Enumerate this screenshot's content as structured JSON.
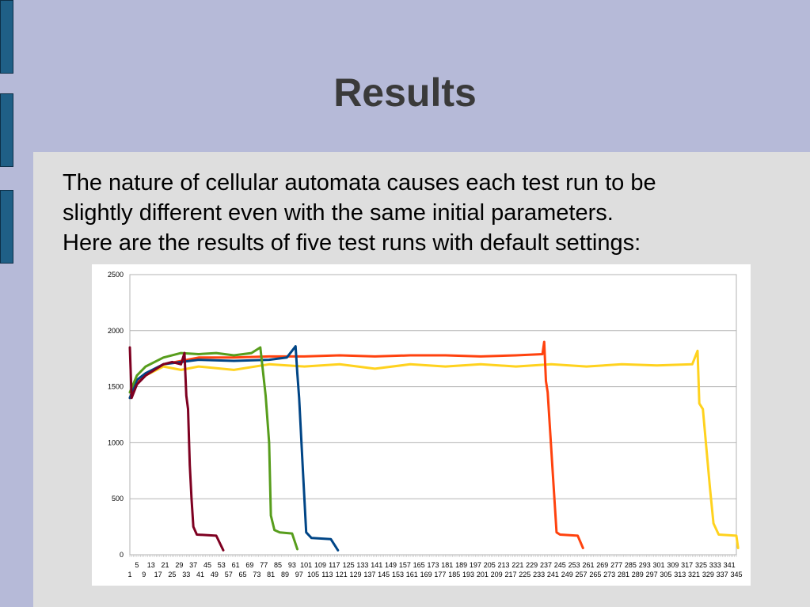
{
  "slide": {
    "title": "Results",
    "body_lines": [
      "The nature of cellular automata causes each test run to be",
      "slightly different even with the same initial parameters.",
      "Here are the results of five test runs with default settings:"
    ]
  },
  "colors": {
    "background": "#b6bad8",
    "content_panel": "#dedede",
    "edge_tabs": "#1f5f86",
    "title_text": "#3a3a3a"
  },
  "chart_data": {
    "type": "line",
    "title": "",
    "xlabel": "",
    "ylabel": "",
    "ylim": [
      0,
      2500
    ],
    "xlim": [
      1,
      345
    ],
    "yticks": [
      0,
      500,
      1000,
      1500,
      2000,
      2500
    ],
    "xtick_rows": [
      [
        "5",
        "13",
        "21",
        "29",
        "37",
        "45",
        "53",
        "61",
        "69",
        "77",
        "85",
        "93",
        "101",
        "109",
        "117",
        "125",
        "133",
        "141",
        "149",
        "157",
        "165",
        "173",
        "181",
        "189",
        "197",
        "205",
        "213",
        "221",
        "229",
        "237",
        "245",
        "253",
        "261",
        "269",
        "277",
        "285",
        "293",
        "301",
        "309",
        "317",
        "325",
        "333",
        "341"
      ],
      [
        "1",
        "9",
        "17",
        "25",
        "33",
        "41",
        "49",
        "57",
        "65",
        "73",
        "81",
        "89",
        "97",
        "105",
        "113",
        "121",
        "129",
        "137",
        "145",
        "153",
        "161",
        "169",
        "177",
        "185",
        "193",
        "201",
        "209",
        "217",
        "225",
        "233",
        "241",
        "249",
        "257",
        "265",
        "273",
        "281",
        "289",
        "297",
        "305",
        "313",
        "321",
        "329",
        "337",
        "345"
      ]
    ],
    "grid": true,
    "legend": "none",
    "series": [
      {
        "color": "#ffd21e",
        "points": [
          [
            1,
            1400
          ],
          [
            5,
            1550
          ],
          [
            10,
            1600
          ],
          [
            20,
            1680
          ],
          [
            30,
            1650
          ],
          [
            40,
            1680
          ],
          [
            60,
            1650
          ],
          [
            80,
            1700
          ],
          [
            100,
            1680
          ],
          [
            120,
            1700
          ],
          [
            140,
            1660
          ],
          [
            160,
            1700
          ],
          [
            180,
            1680
          ],
          [
            200,
            1700
          ],
          [
            220,
            1680
          ],
          [
            240,
            1700
          ],
          [
            260,
            1680
          ],
          [
            280,
            1700
          ],
          [
            300,
            1690
          ],
          [
            320,
            1700
          ],
          [
            323,
            1820
          ],
          [
            324,
            1350
          ],
          [
            326,
            1300
          ],
          [
            330,
            600
          ],
          [
            332,
            280
          ],
          [
            335,
            180
          ],
          [
            345,
            170
          ],
          [
            346,
            60
          ]
        ]
      },
      {
        "color": "#ff420e",
        "points": [
          [
            1,
            1400
          ],
          [
            5,
            1550
          ],
          [
            10,
            1600
          ],
          [
            20,
            1700
          ],
          [
            40,
            1760
          ],
          [
            60,
            1760
          ],
          [
            80,
            1770
          ],
          [
            100,
            1770
          ],
          [
            120,
            1780
          ],
          [
            140,
            1770
          ],
          [
            160,
            1780
          ],
          [
            180,
            1780
          ],
          [
            200,
            1770
          ],
          [
            220,
            1780
          ],
          [
            235,
            1790
          ],
          [
            236,
            1900
          ],
          [
            237,
            1550
          ],
          [
            238,
            1450
          ],
          [
            241,
            700
          ],
          [
            243,
            200
          ],
          [
            245,
            180
          ],
          [
            255,
            170
          ],
          [
            258,
            60
          ]
        ]
      },
      {
        "color": "#004586",
        "points": [
          [
            1,
            1400
          ],
          [
            5,
            1560
          ],
          [
            10,
            1620
          ],
          [
            20,
            1700
          ],
          [
            40,
            1740
          ],
          [
            60,
            1730
          ],
          [
            80,
            1740
          ],
          [
            90,
            1760
          ],
          [
            95,
            1860
          ],
          [
            96,
            1620
          ],
          [
            97,
            1400
          ],
          [
            99,
            800
          ],
          [
            101,
            200
          ],
          [
            104,
            150
          ],
          [
            115,
            140
          ],
          [
            119,
            40
          ]
        ]
      },
      {
        "color": "#579d1c",
        "points": [
          [
            1,
            1450
          ],
          [
            5,
            1600
          ],
          [
            10,
            1680
          ],
          [
            20,
            1760
          ],
          [
            30,
            1800
          ],
          [
            40,
            1790
          ],
          [
            50,
            1800
          ],
          [
            60,
            1780
          ],
          [
            70,
            1800
          ],
          [
            75,
            1850
          ],
          [
            78,
            1420
          ],
          [
            80,
            1000
          ],
          [
            81,
            350
          ],
          [
            83,
            220
          ],
          [
            86,
            200
          ],
          [
            93,
            190
          ],
          [
            96,
            50
          ]
        ]
      },
      {
        "color": "#7e0021",
        "points": [
          [
            1,
            1850
          ],
          [
            2,
            1400
          ],
          [
            5,
            1520
          ],
          [
            10,
            1600
          ],
          [
            15,
            1650
          ],
          [
            20,
            1700
          ],
          [
            25,
            1720
          ],
          [
            30,
            1700
          ],
          [
            32,
            1800
          ],
          [
            33,
            1420
          ],
          [
            34,
            1300
          ],
          [
            35,
            800
          ],
          [
            36,
            500
          ],
          [
            37,
            250
          ],
          [
            39,
            180
          ],
          [
            50,
            170
          ],
          [
            54,
            40
          ]
        ]
      }
    ]
  }
}
